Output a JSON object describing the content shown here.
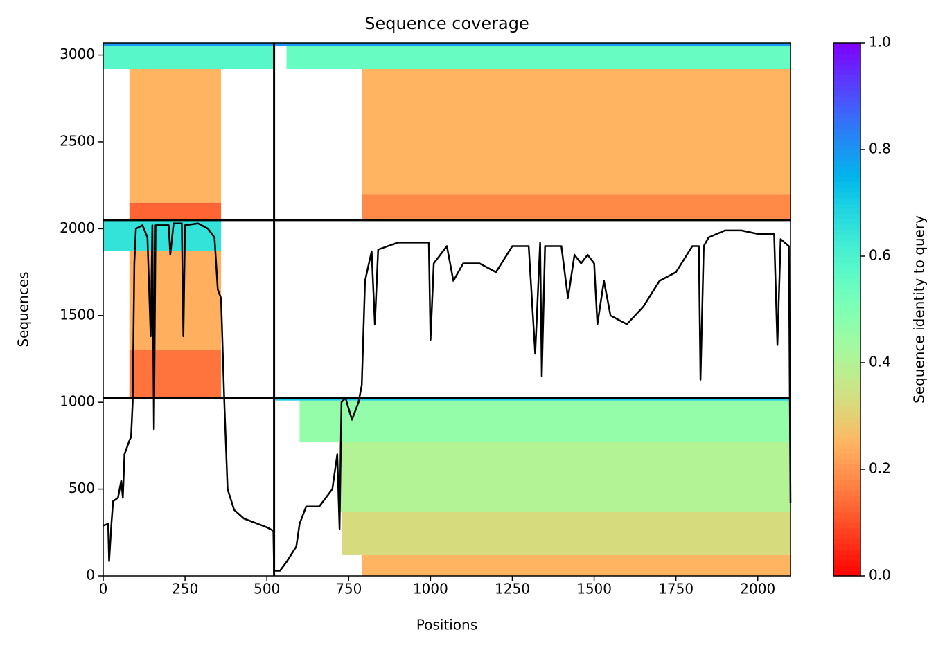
{
  "chart_data": {
    "type": "coverage",
    "title": "Sequence coverage",
    "xlabel": "Positions",
    "ylabel": "Sequences",
    "colorbar_label": "Sequence identity to query",
    "colormap": "rainbow_r",
    "xlim": [
      0,
      2100
    ],
    "ylim": [
      0,
      3070
    ],
    "xticks": [
      0,
      250,
      500,
      750,
      1000,
      1250,
      1500,
      1750,
      2000
    ],
    "yticks": [
      0,
      500,
      1000,
      1500,
      2000,
      2500,
      3000
    ],
    "clim": [
      0,
      1
    ],
    "cticks": [
      {
        "value": 0,
        "label": "0.0"
      },
      0.2,
      0.4,
      0.6,
      0.8,
      {
        "value": 1,
        "label": "1.0"
      }
    ],
    "boundaries_x": [
      522
    ],
    "boundaries_y": [
      1025,
      2050
    ],
    "blocks": [
      {
        "x0": 0,
        "x1": 522,
        "y0": 2920,
        "y1": 3050,
        "identity": 0.58
      },
      {
        "x0": 0,
        "x1": 522,
        "y0": 3050,
        "y1": 3070,
        "identity": 0.8
      },
      {
        "x0": 80,
        "x1": 360,
        "y0": 2150,
        "y1": 2920,
        "identity": 0.25
      },
      {
        "x0": 80,
        "x1": 360,
        "y0": 2050,
        "y1": 2150,
        "identity": 0.13
      },
      {
        "x0": 560,
        "x1": 2100,
        "y0": 2920,
        "y1": 3050,
        "identity": 0.55
      },
      {
        "x0": 522,
        "x1": 2100,
        "y0": 3050,
        "y1": 3070,
        "identity": 0.8
      },
      {
        "x0": 790,
        "x1": 2100,
        "y0": 2200,
        "y1": 2920,
        "identity": 0.25
      },
      {
        "x0": 790,
        "x1": 2100,
        "y0": 2050,
        "y1": 2200,
        "identity": 0.18
      },
      {
        "x0": 0,
        "x1": 360,
        "y0": 1870,
        "y1": 2050,
        "identity": 0.65
      },
      {
        "x0": 80,
        "x1": 360,
        "y0": 1300,
        "y1": 1870,
        "identity": 0.24
      },
      {
        "x0": 80,
        "x1": 360,
        "y0": 1025,
        "y1": 1300,
        "identity": 0.15
      },
      {
        "x0": 600,
        "x1": 2100,
        "y0": 770,
        "y1": 1010,
        "identity": 0.46
      },
      {
        "x0": 522,
        "x1": 2100,
        "y0": 1010,
        "y1": 1025,
        "identity": 0.7
      },
      {
        "x0": 720,
        "x1": 2100,
        "y0": 370,
        "y1": 770,
        "identity": 0.4
      },
      {
        "x0": 730,
        "x1": 2100,
        "y0": 120,
        "y1": 370,
        "identity": 0.33
      },
      {
        "x0": 790,
        "x1": 2100,
        "y0": 0,
        "y1": 120,
        "identity": 0.25
      }
    ],
    "coverage_x": [
      0,
      15,
      18,
      25,
      30,
      45,
      55,
      60,
      65,
      80,
      85,
      90,
      95,
      100,
      120,
      135,
      145,
      150,
      155,
      160,
      200,
      205,
      215,
      240,
      245,
      250,
      290,
      320,
      340,
      350,
      360,
      370,
      380,
      400,
      430,
      500,
      520,
      522,
      540,
      560,
      590,
      600,
      620,
      660,
      700,
      715,
      722,
      728,
      740,
      760,
      780,
      790,
      800,
      820,
      830,
      840,
      900,
      950,
      995,
      1000,
      1010,
      1050,
      1070,
      1100,
      1150,
      1200,
      1250,
      1300,
      1320,
      1335,
      1340,
      1350,
      1400,
      1420,
      1440,
      1460,
      1480,
      1500,
      1510,
      1530,
      1550,
      1600,
      1650,
      1700,
      1750,
      1800,
      1820,
      1825,
      1835,
      1850,
      1900,
      1950,
      2000,
      2050,
      2060,
      2070,
      2095,
      2100
    ],
    "coverage_y": [
      290,
      300,
      85,
      300,
      430,
      450,
      550,
      450,
      700,
      780,
      800,
      1000,
      1800,
      2000,
      2020,
      1950,
      1380,
      2020,
      845,
      2020,
      2020,
      1850,
      2030,
      2030,
      1380,
      2020,
      2030,
      2000,
      1950,
      1650,
      1600,
      1000,
      500,
      380,
      330,
      280,
      260,
      30,
      30,
      80,
      170,
      300,
      400,
      400,
      500,
      700,
      270,
      1000,
      1025,
      900,
      1000,
      1100,
      1700,
      1870,
      1450,
      1880,
      1920,
      1920,
      1920,
      1360,
      1800,
      1900,
      1700,
      1800,
      1800,
      1750,
      1900,
      1900,
      1280,
      1920,
      1150,
      1900,
      1900,
      1600,
      1850,
      1800,
      1850,
      1800,
      1450,
      1700,
      1500,
      1450,
      1550,
      1700,
      1750,
      1900,
      1900,
      1130,
      1900,
      1950,
      1990,
      1990,
      1970,
      1970,
      1330,
      1940,
      1900,
      420
    ]
  }
}
